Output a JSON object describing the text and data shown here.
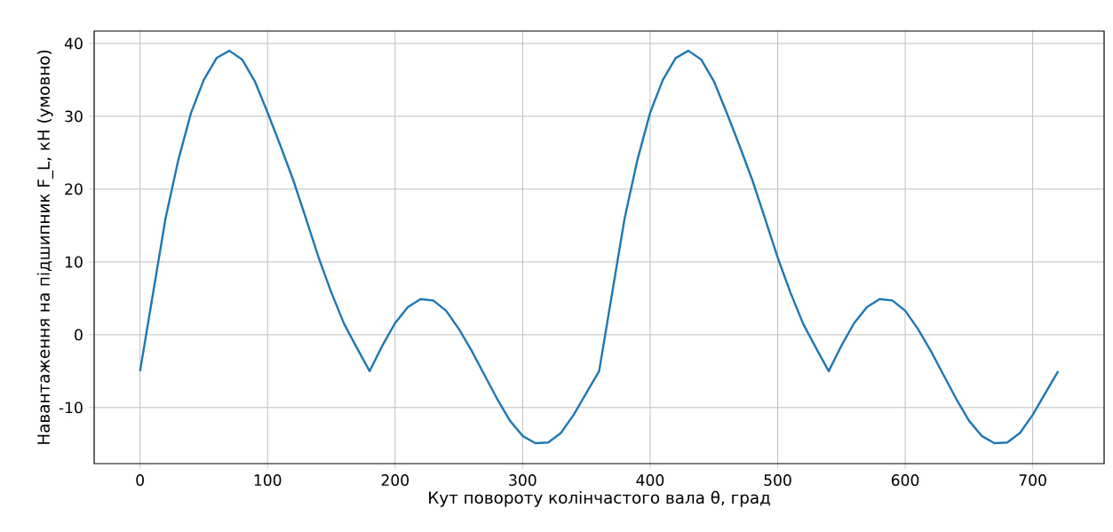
{
  "chart_data": {
    "type": "line",
    "xlabel": "Кут повороту колінчастого вала θ, град",
    "ylabel": "Навантаження на підшипник F_L, кН (умовно)",
    "x": [
      0,
      10,
      20,
      30,
      40,
      50,
      60,
      70,
      80,
      90,
      100,
      110,
      120,
      130,
      140,
      150,
      160,
      170,
      180,
      190,
      200,
      210,
      220,
      230,
      240,
      250,
      260,
      270,
      280,
      290,
      300,
      310,
      320,
      330,
      340,
      350,
      360,
      370,
      380,
      390,
      400,
      410,
      420,
      430,
      440,
      450,
      460,
      470,
      480,
      490,
      500,
      510,
      520,
      530,
      540,
      550,
      560,
      570,
      580,
      590,
      600,
      610,
      620,
      630,
      640,
      650,
      660,
      670,
      680,
      690,
      700,
      710,
      720
    ],
    "series": [
      {
        "color": "#1f77b4",
        "values": [
          -5,
          5.5,
          16,
          24,
          30.5,
          35,
          38,
          39,
          37.8,
          34.8,
          30.5,
          26,
          21.3,
          16,
          10.6,
          5.8,
          1.5,
          -1.8,
          -5,
          -1.5,
          1.6,
          3.8,
          4.9,
          4.7,
          3.3,
          0.8,
          -2.2,
          -5.5,
          -8.8,
          -11.8,
          -13.9,
          -14.9,
          -14.8,
          -13.5,
          -11,
          -8,
          -5,
          5.5,
          16,
          24,
          30.5,
          35,
          38,
          39,
          37.8,
          34.8,
          30.5,
          26,
          21.3,
          16,
          10.6,
          5.8,
          1.5,
          -1.8,
          -5,
          -1.5,
          1.6,
          3.8,
          4.9,
          4.7,
          3.3,
          0.8,
          -2.2,
          -5.5,
          -8.8,
          -11.8,
          -13.9,
          -14.9,
          -14.8,
          -13.5,
          -11,
          -8,
          -5
        ]
      }
    ],
    "xlim": [
      -36,
      756
    ],
    "ylim": [
      -17.7,
      41.7
    ],
    "xticks": [
      0,
      100,
      200,
      300,
      400,
      500,
      600,
      700
    ],
    "yticks": [
      -10,
      0,
      10,
      20,
      30,
      40
    ],
    "grid": true,
    "marker": "none",
    "line_style": "solid"
  }
}
